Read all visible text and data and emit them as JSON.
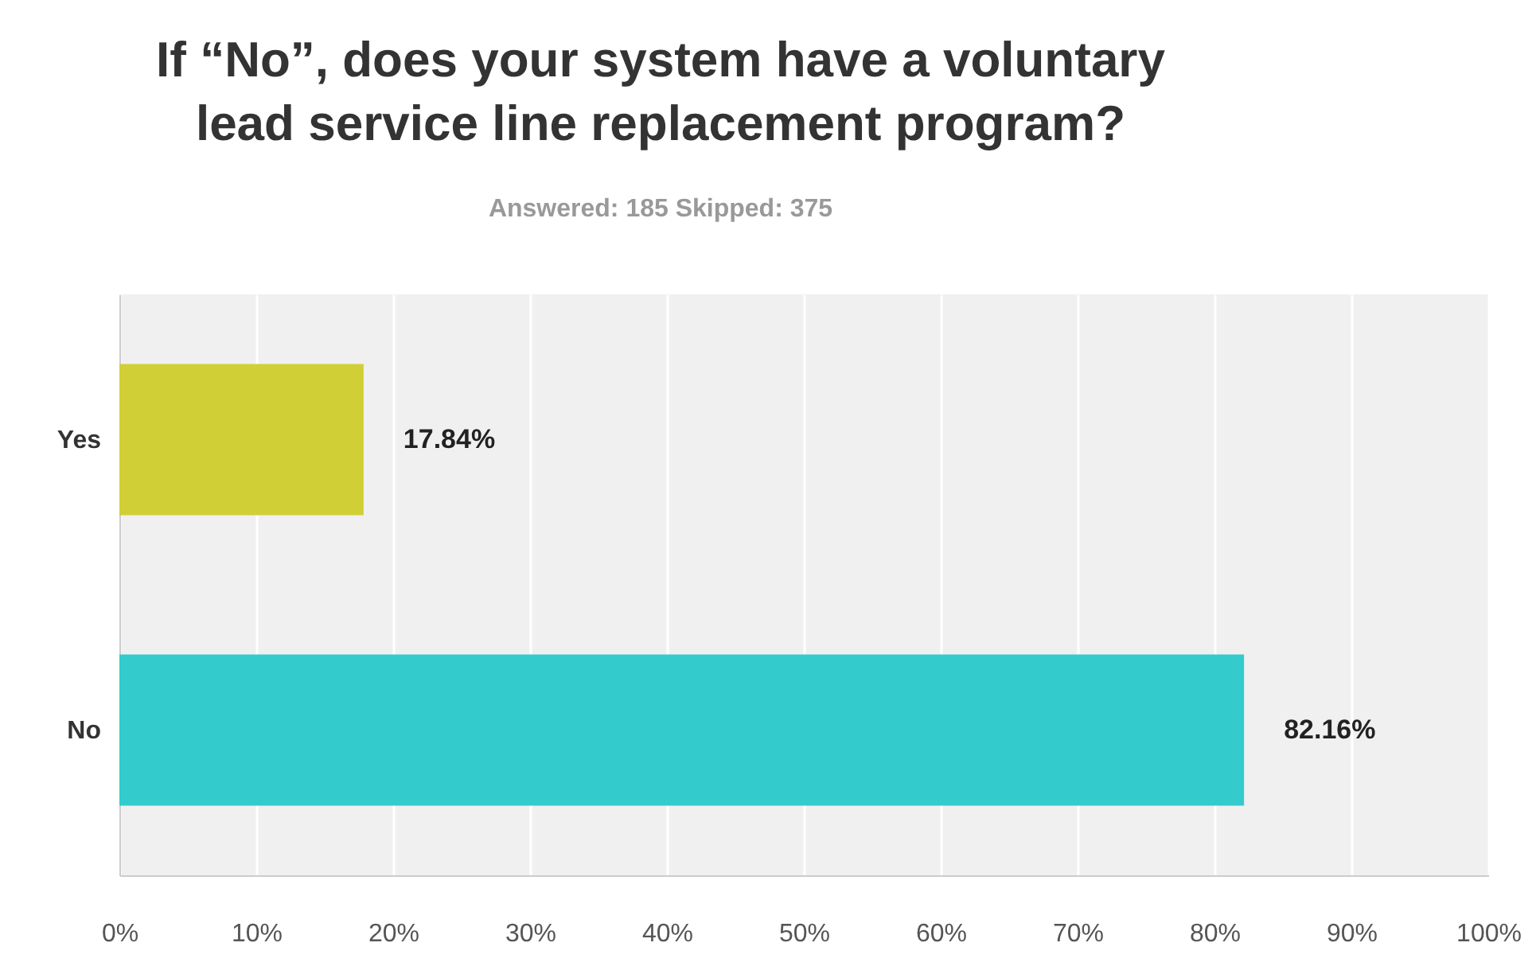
{
  "chart_data": {
    "type": "bar",
    "orientation": "horizontal",
    "title": [
      "If “No”, does your system have a voluntary",
      "lead service line replacement program?"
    ],
    "subtitle": "Answered: 185    Skipped: 375",
    "categories": [
      "Yes",
      "No"
    ],
    "values": [
      17.84,
      82.16
    ],
    "colors": [
      "#d0cf35",
      "#33cbcc"
    ],
    "value_labels": [
      "17.84%",
      "82.16%"
    ],
    "xlim": [
      0,
      100
    ],
    "xticks": [
      {
        "value": 0,
        "label": "0%"
      },
      {
        "value": 10,
        "label": "10%"
      },
      {
        "value": 20,
        "label": "20%"
      },
      {
        "value": 30,
        "label": "30%"
      },
      {
        "value": 40,
        "label": "40%"
      },
      {
        "value": 50,
        "label": "50%"
      },
      {
        "value": 60,
        "label": "60%"
      },
      {
        "value": 70,
        "label": "70%"
      },
      {
        "value": 80,
        "label": "80%"
      },
      {
        "value": 90,
        "label": "90%"
      },
      {
        "value": 100,
        "label": "100%"
      }
    ],
    "grid": "x"
  }
}
